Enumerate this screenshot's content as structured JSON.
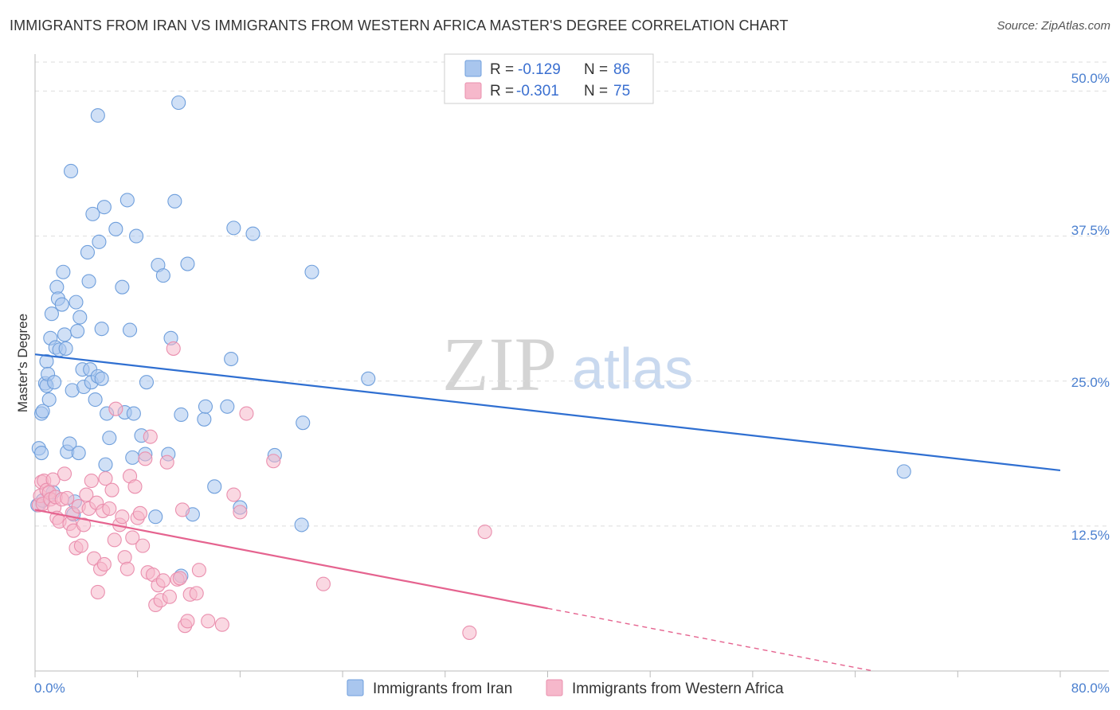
{
  "header": {
    "title": "IMMIGRANTS FROM IRAN VS IMMIGRANTS FROM WESTERN AFRICA MASTER'S DEGREE CORRELATION CHART",
    "source": "Source: ZipAtlas.com"
  },
  "watermark": {
    "zip": "ZIP",
    "atlas": "atlas"
  },
  "legend": {
    "series1": {
      "r_label": "R =",
      "r_value": "-0.129",
      "n_label": "N =",
      "n_value": "86"
    },
    "series2": {
      "r_label": "R =",
      "r_value": "-0.301",
      "n_label": "N =",
      "n_value": "75"
    }
  },
  "colors": {
    "blue_fill": "#a9c6ee",
    "blue_stroke": "#6f9fdc",
    "blue_line": "#2f6fd1",
    "pink_fill": "#f6b8cb",
    "pink_stroke": "#ea8fae",
    "pink_line": "#e5638f",
    "grid": "#dddddd",
    "tick_label": "#4a7fcf"
  },
  "chart_data": {
    "type": "scatter",
    "title": "IMMIGRANTS FROM IRAN VS IMMIGRANTS FROM WESTERN AFRICA MASTER'S DEGREE CORRELATION CHART",
    "xlabel": "",
    "ylabel": "Master's Degree",
    "xlim": [
      0,
      80
    ],
    "ylim": [
      0,
      52.5
    ],
    "x_tick_labels": [
      "0.0%",
      "80.0%"
    ],
    "y_ticks": [
      12.5,
      25.0,
      37.5,
      50.0
    ],
    "y_tick_labels": [
      "12.5%",
      "25.0%",
      "37.5%",
      "50.0%"
    ],
    "grid": true,
    "legend_position": "top-center",
    "series": [
      {
        "name": "Immigrants from Iran",
        "color": "blue",
        "r": -0.129,
        "n": 86,
        "trend": {
          "x0": 0,
          "y0": 27.3,
          "x1": 80,
          "y1": 17.3,
          "solid_until": 80
        },
        "points": [
          [
            0.3,
            19.2
          ],
          [
            0.5,
            18.8
          ],
          [
            0.5,
            22.2
          ],
          [
            0.6,
            22.4
          ],
          [
            0.8,
            24.8
          ],
          [
            0.9,
            24.6
          ],
          [
            0.9,
            26.7
          ],
          [
            1.0,
            25.6
          ],
          [
            1.1,
            23.4
          ],
          [
            1.2,
            28.7
          ],
          [
            1.3,
            30.8
          ],
          [
            1.4,
            15.4
          ],
          [
            1.5,
            24.9
          ],
          [
            1.6,
            27.9
          ],
          [
            1.7,
            33.1
          ],
          [
            1.8,
            32.1
          ],
          [
            1.9,
            27.7
          ],
          [
            2.1,
            31.6
          ],
          [
            2.2,
            34.4
          ],
          [
            2.3,
            29.0
          ],
          [
            2.4,
            27.8
          ],
          [
            2.5,
            18.9
          ],
          [
            2.7,
            19.6
          ],
          [
            2.8,
            43.1
          ],
          [
            2.9,
            24.2
          ],
          [
            3.0,
            13.5
          ],
          [
            3.1,
            14.6
          ],
          [
            3.2,
            31.8
          ],
          [
            3.3,
            29.3
          ],
          [
            3.4,
            18.8
          ],
          [
            3.5,
            30.5
          ],
          [
            3.7,
            26.0
          ],
          [
            3.8,
            24.5
          ],
          [
            4.1,
            36.1
          ],
          [
            4.2,
            33.6
          ],
          [
            4.3,
            26.0
          ],
          [
            4.4,
            24.9
          ],
          [
            4.5,
            39.4
          ],
          [
            4.7,
            23.4
          ],
          [
            4.9,
            47.9
          ],
          [
            4.9,
            25.4
          ],
          [
            5.0,
            37.0
          ],
          [
            5.2,
            29.5
          ],
          [
            5.2,
            25.2
          ],
          [
            5.4,
            40.0
          ],
          [
            5.5,
            17.8
          ],
          [
            5.6,
            22.2
          ],
          [
            5.8,
            20.1
          ],
          [
            6.3,
            38.1
          ],
          [
            6.8,
            33.1
          ],
          [
            7.0,
            22.3
          ],
          [
            7.2,
            40.6
          ],
          [
            7.4,
            29.4
          ],
          [
            7.6,
            18.4
          ],
          [
            7.7,
            22.2
          ],
          [
            7.9,
            37.5
          ],
          [
            8.3,
            20.3
          ],
          [
            8.6,
            18.7
          ],
          [
            8.7,
            24.9
          ],
          [
            9.4,
            13.3
          ],
          [
            9.6,
            35.0
          ],
          [
            10.0,
            34.1
          ],
          [
            10.4,
            18.7
          ],
          [
            10.6,
            28.7
          ],
          [
            10.9,
            40.5
          ],
          [
            11.2,
            49.0
          ],
          [
            11.4,
            22.1
          ],
          [
            11.4,
            8.2
          ],
          [
            11.9,
            35.1
          ],
          [
            12.3,
            13.5
          ],
          [
            13.2,
            21.7
          ],
          [
            13.3,
            22.8
          ],
          [
            14.0,
            15.9
          ],
          [
            15.0,
            22.8
          ],
          [
            15.3,
            26.9
          ],
          [
            15.5,
            38.2
          ],
          [
            16.0,
            14.1
          ],
          [
            17.0,
            37.7
          ],
          [
            18.7,
            18.6
          ],
          [
            20.8,
            12.6
          ],
          [
            20.9,
            21.4
          ],
          [
            21.6,
            34.4
          ],
          [
            26.0,
            25.2
          ],
          [
            67.8,
            17.2
          ],
          [
            0.2,
            14.3
          ],
          [
            0.6,
            14.7
          ]
        ]
      },
      {
        "name": "Immigrants from Western Africa",
        "color": "pink",
        "r": -0.301,
        "n": 75,
        "trend": {
          "x0": 0,
          "y0": 13.9,
          "x1": 80,
          "y1": -3.1,
          "solid_until": 40
        },
        "points": [
          [
            0.3,
            14.3
          ],
          [
            0.4,
            15.1
          ],
          [
            0.5,
            16.3
          ],
          [
            0.6,
            14.4
          ],
          [
            0.7,
            16.4
          ],
          [
            0.9,
            15.6
          ],
          [
            1.1,
            15.4
          ],
          [
            1.2,
            14.8
          ],
          [
            1.4,
            16.5
          ],
          [
            1.5,
            14.1
          ],
          [
            1.6,
            15.0
          ],
          [
            1.7,
            13.2
          ],
          [
            1.9,
            12.9
          ],
          [
            2.1,
            14.8
          ],
          [
            2.3,
            17.0
          ],
          [
            2.5,
            14.9
          ],
          [
            2.7,
            12.7
          ],
          [
            2.9,
            13.6
          ],
          [
            3.0,
            12.1
          ],
          [
            3.2,
            10.6
          ],
          [
            3.4,
            14.2
          ],
          [
            3.6,
            10.8
          ],
          [
            3.8,
            12.6
          ],
          [
            4.0,
            15.2
          ],
          [
            4.2,
            14.0
          ],
          [
            4.4,
            16.4
          ],
          [
            4.6,
            9.7
          ],
          [
            4.8,
            14.5
          ],
          [
            4.9,
            6.8
          ],
          [
            5.1,
            8.8
          ],
          [
            5.3,
            13.8
          ],
          [
            5.4,
            9.2
          ],
          [
            5.5,
            16.6
          ],
          [
            5.8,
            14.0
          ],
          [
            6.0,
            15.6
          ],
          [
            6.2,
            11.3
          ],
          [
            6.3,
            22.6
          ],
          [
            6.6,
            12.6
          ],
          [
            6.8,
            13.3
          ],
          [
            7.0,
            9.8
          ],
          [
            7.2,
            8.8
          ],
          [
            7.4,
            16.8
          ],
          [
            7.6,
            11.5
          ],
          [
            7.8,
            15.9
          ],
          [
            8.0,
            13.2
          ],
          [
            8.2,
            13.6
          ],
          [
            8.4,
            10.8
          ],
          [
            8.6,
            18.3
          ],
          [
            8.8,
            8.5
          ],
          [
            9.0,
            20.2
          ],
          [
            9.2,
            8.3
          ],
          [
            9.4,
            5.7
          ],
          [
            9.6,
            7.4
          ],
          [
            9.8,
            6.1
          ],
          [
            10.0,
            7.8
          ],
          [
            10.3,
            18.0
          ],
          [
            10.5,
            6.4
          ],
          [
            10.8,
            27.8
          ],
          [
            11.1,
            7.9
          ],
          [
            11.3,
            8.0
          ],
          [
            11.5,
            13.9
          ],
          [
            11.7,
            3.9
          ],
          [
            11.9,
            4.3
          ],
          [
            12.1,
            6.6
          ],
          [
            12.6,
            6.7
          ],
          [
            12.8,
            8.7
          ],
          [
            13.5,
            4.3
          ],
          [
            14.6,
            4.0
          ],
          [
            15.5,
            15.2
          ],
          [
            16.0,
            13.7
          ],
          [
            16.5,
            22.2
          ],
          [
            18.6,
            18.1
          ],
          [
            22.5,
            7.5
          ],
          [
            35.1,
            12.0
          ],
          [
            33.9,
            3.3
          ]
        ]
      }
    ]
  },
  "bottom_legend": {
    "series1_label": "Immigrants from Iran",
    "series2_label": "Immigrants from Western Africa"
  }
}
